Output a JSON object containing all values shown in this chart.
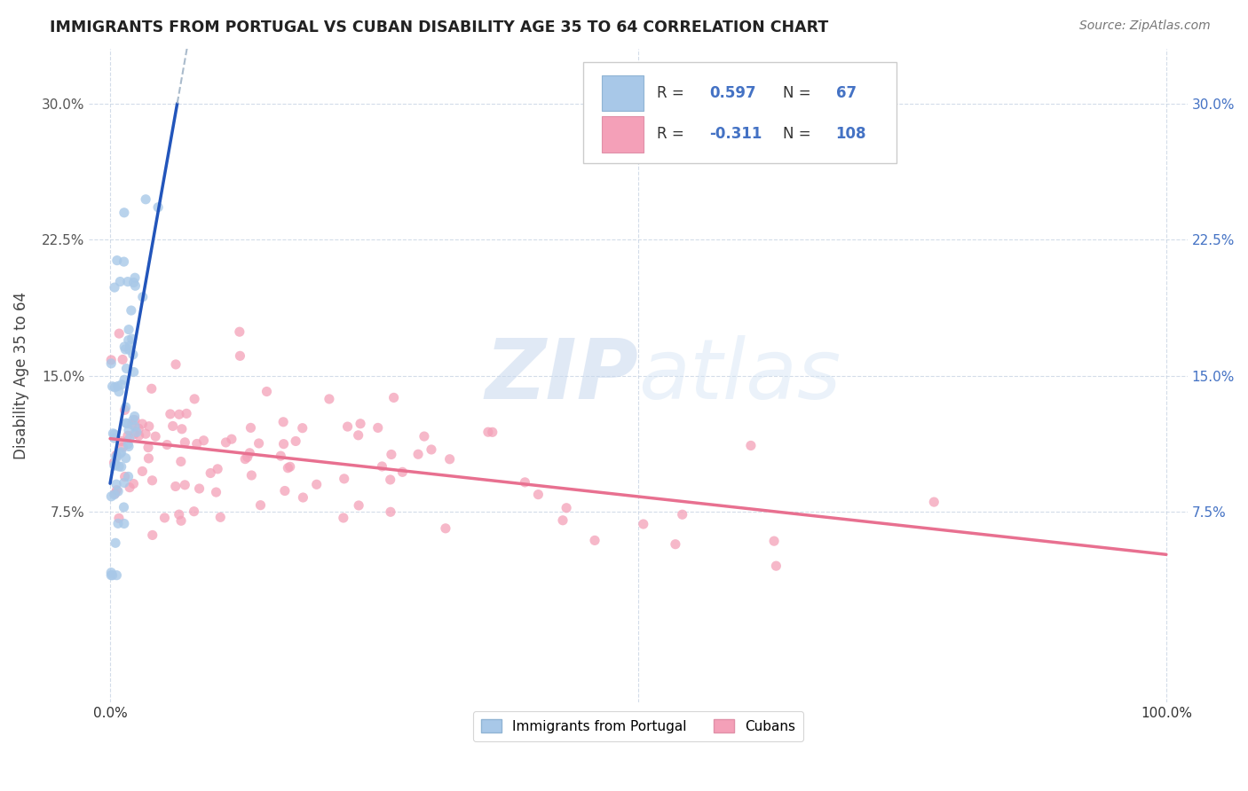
{
  "title": "IMMIGRANTS FROM PORTUGAL VS CUBAN DISABILITY AGE 35 TO 64 CORRELATION CHART",
  "source": "Source: ZipAtlas.com",
  "ylabel": "Disability Age 35 to 64",
  "R1": 0.597,
  "N1": 67,
  "R2": -0.311,
  "N2": 108,
  "color_blue": "#A8C8E8",
  "color_pink": "#F4A0B8",
  "color_blue_text": "#4472C4",
  "color_line_blue": "#2255BB",
  "color_line_pink": "#E87090",
  "color_dash": "#AABBCC",
  "legend_label1": "Immigrants from Portugal",
  "legend_label2": "Cubans",
  "watermark_zip": "ZIP",
  "watermark_atlas": "atlas",
  "ytick_labels": [
    "7.5%",
    "15.0%",
    "22.5%",
    "30.0%"
  ],
  "ytick_vals": [
    0.075,
    0.15,
    0.225,
    0.3
  ],
  "xlim": [
    -0.02,
    1.02
  ],
  "ylim": [
    -0.03,
    0.33
  ],
  "port_seed": 17,
  "cuba_seed": 42
}
